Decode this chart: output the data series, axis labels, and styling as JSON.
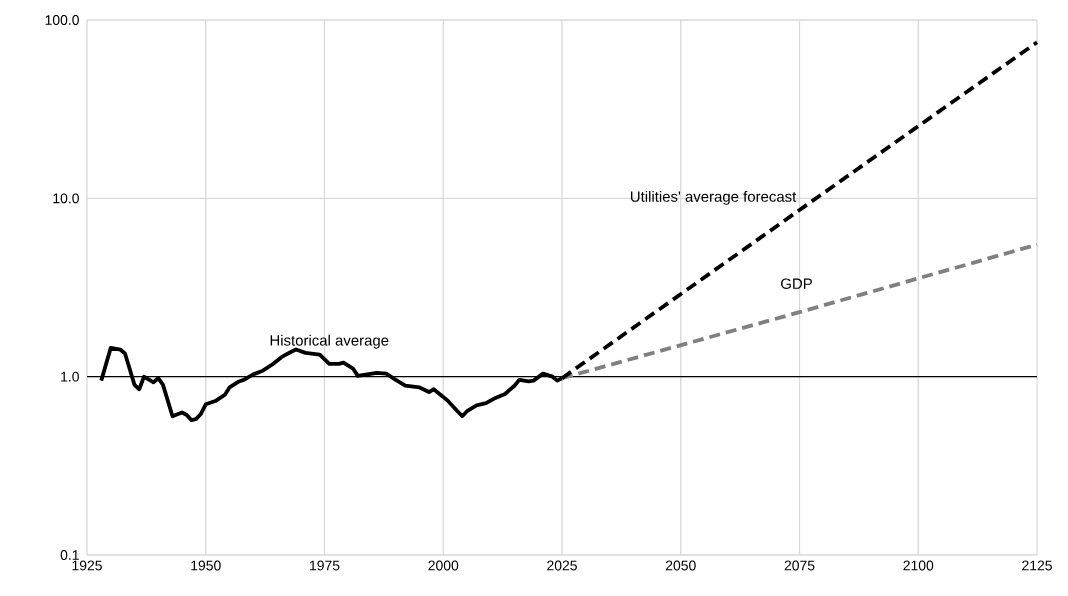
{
  "chart_data": {
    "type": "line",
    "log": "y",
    "grid": true,
    "xlim": [
      1925,
      2125
    ],
    "ylim": [
      0.1,
      100
    ],
    "xticks": [
      1925,
      1950,
      1975,
      2000,
      2025,
      2050,
      2075,
      2100,
      2125
    ],
    "yticks": [
      {
        "value": 0.1,
        "label": "0.1"
      },
      {
        "value": 1,
        "label": "1.0"
      },
      {
        "value": 10,
        "label": "10.0"
      },
      {
        "value": 100,
        "label": "100.0"
      }
    ],
    "series": [
      {
        "name": "Historical average",
        "color": "#000000",
        "line_style": "solid",
        "x": [
          1928,
          1930,
          1932,
          1933,
          1935,
          1936,
          1937,
          1939,
          1940,
          1941,
          1943,
          1945,
          1946,
          1947,
          1948,
          1949,
          1950,
          1952,
          1954,
          1955,
          1957,
          1958,
          1960,
          1962,
          1964,
          1966,
          1968,
          1969,
          1971,
          1974,
          1976,
          1978,
          1979,
          1981,
          1982,
          1984,
          1986,
          1988,
          1990,
          1992,
          1995,
          1997,
          1998,
          2000,
          2001,
          2003,
          2004,
          2005,
          2007,
          2009,
          2011,
          2013,
          2015,
          2016,
          2018,
          2019,
          2021,
          2023,
          2024,
          2025
        ],
        "values": [
          0.95,
          1.45,
          1.42,
          1.35,
          0.9,
          0.85,
          1.0,
          0.93,
          0.98,
          0.9,
          0.6,
          0.63,
          0.61,
          0.57,
          0.58,
          0.62,
          0.7,
          0.73,
          0.79,
          0.87,
          0.94,
          0.96,
          1.03,
          1.08,
          1.17,
          1.29,
          1.38,
          1.42,
          1.36,
          1.33,
          1.18,
          1.18,
          1.2,
          1.11,
          1.01,
          1.03,
          1.05,
          1.04,
          0.96,
          0.89,
          0.87,
          0.82,
          0.85,
          0.77,
          0.73,
          0.64,
          0.6,
          0.64,
          0.69,
          0.71,
          0.76,
          0.8,
          0.89,
          0.96,
          0.94,
          0.95,
          1.04,
          1.0,
          0.95,
          0.98
        ]
      },
      {
        "name": "GDP",
        "color": "#808080",
        "line_style": "dashed",
        "x": [
          2025,
          2075,
          2125
        ],
        "values": [
          0.98,
          2.3,
          5.5
        ]
      },
      {
        "name": "Utilities' average forecast",
        "color": "#000000",
        "line_style": "dashed",
        "x": [
          2025,
          2075,
          2125
        ],
        "values": [
          0.98,
          8.6,
          75
        ]
      }
    ],
    "ref_lines": [
      {
        "axis": "y",
        "value": 1,
        "color": "#000000"
      }
    ]
  }
}
